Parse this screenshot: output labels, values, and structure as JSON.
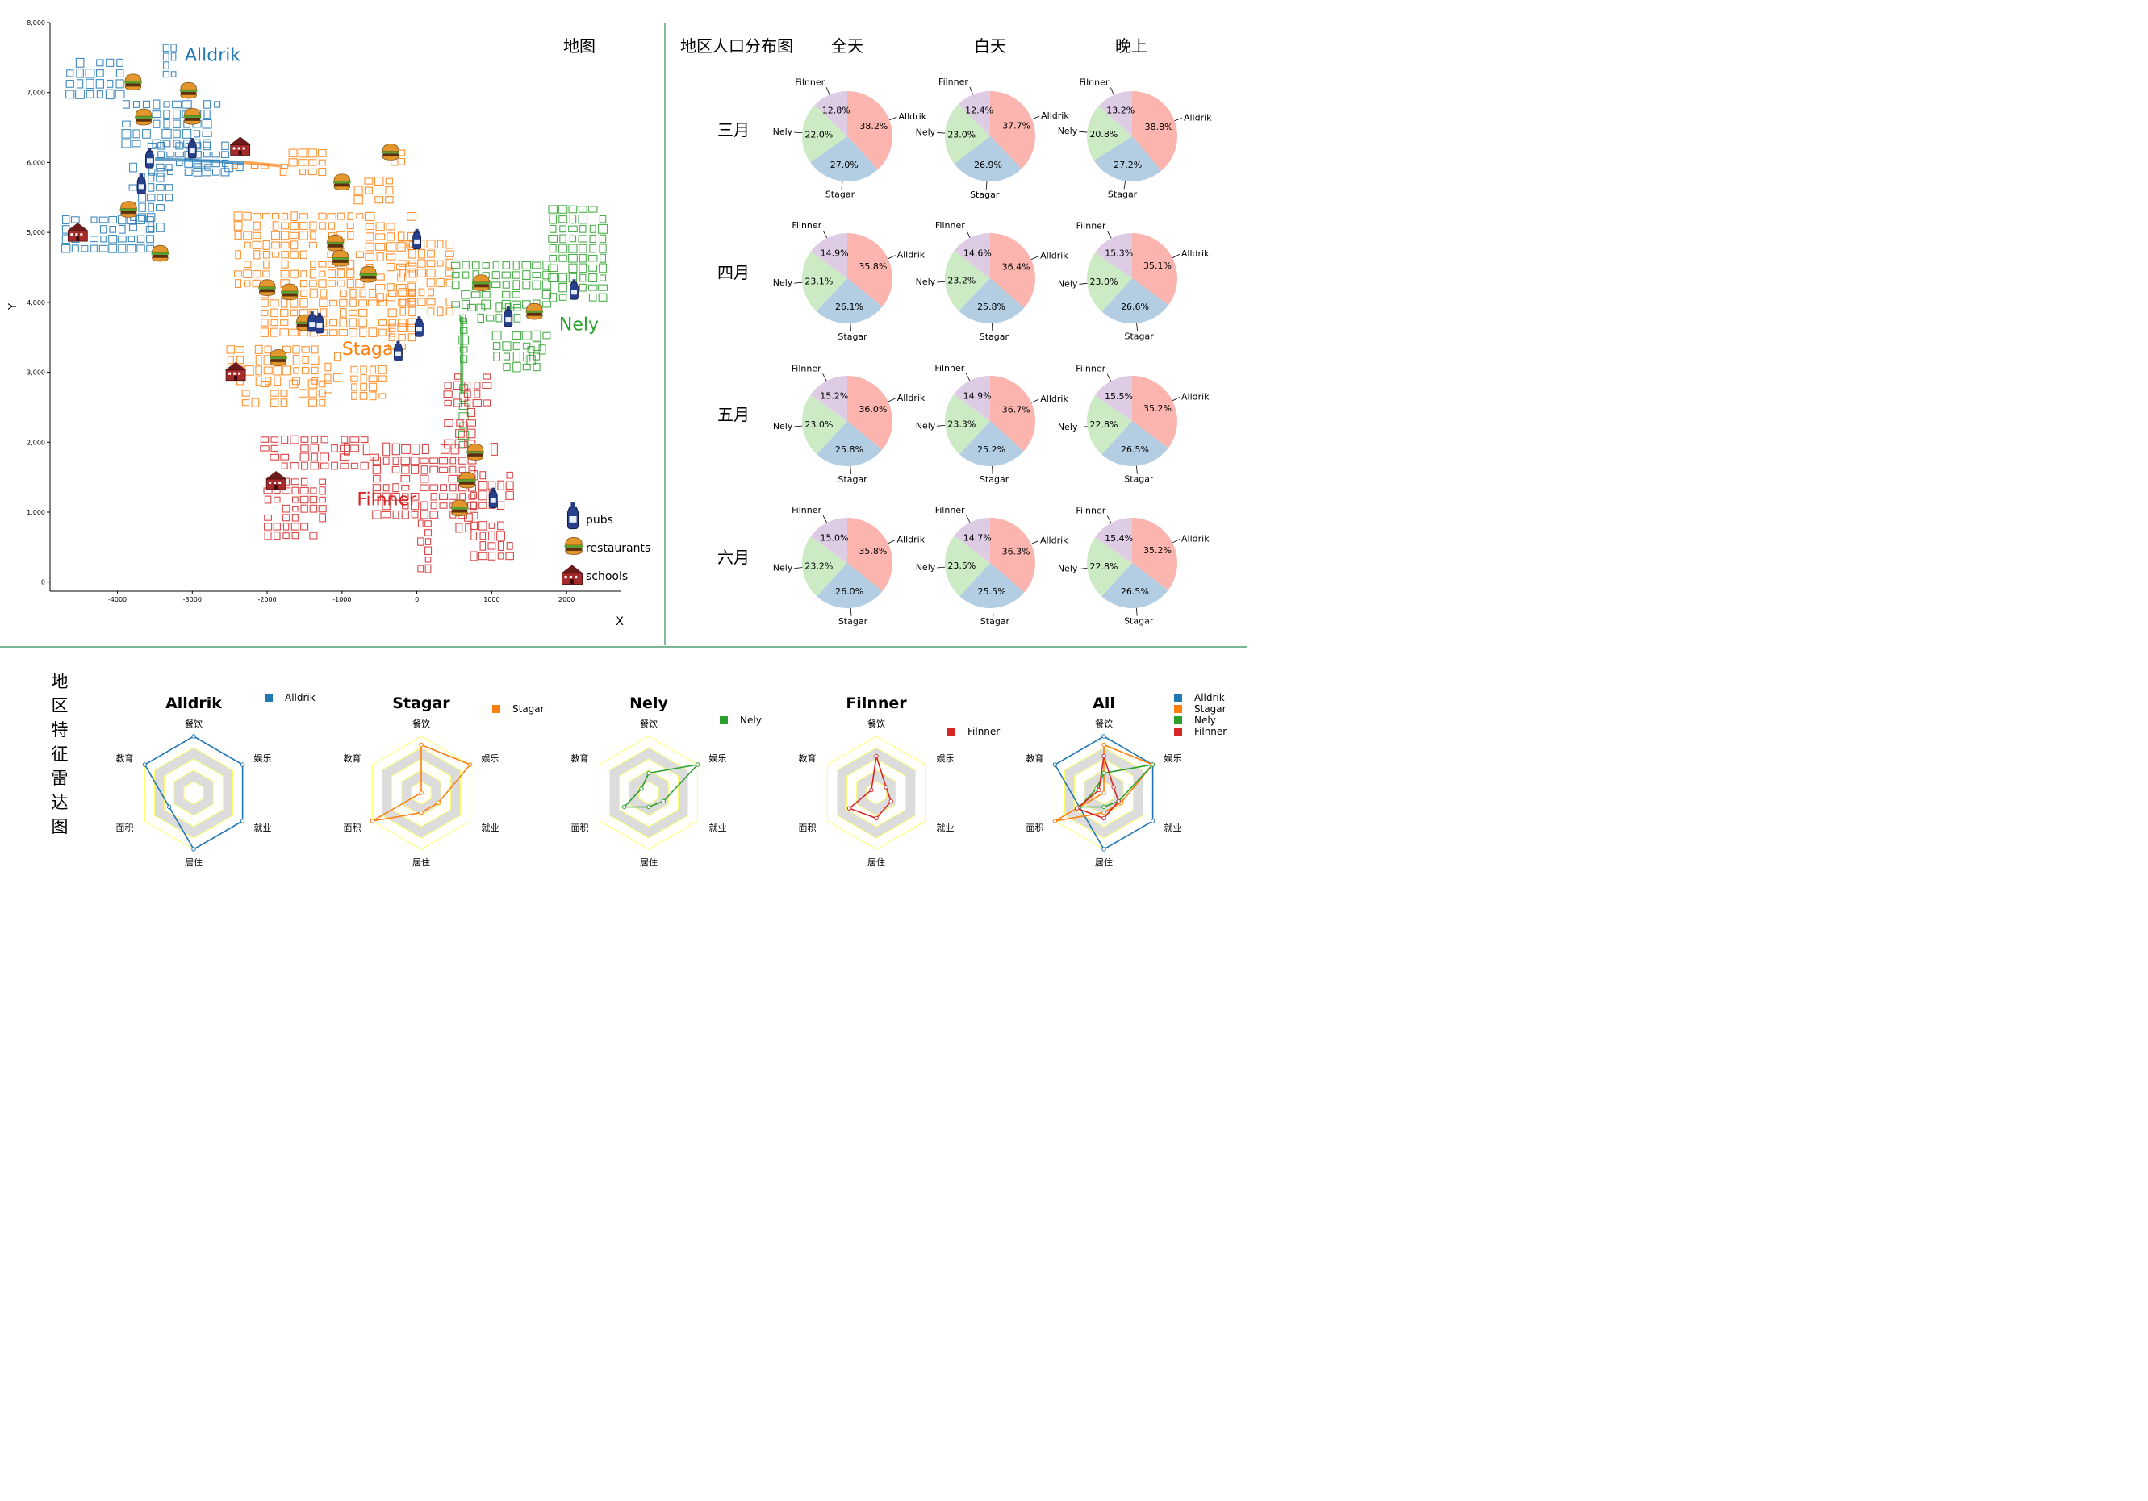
{
  "map": {
    "title": "地图",
    "xlabel": "X",
    "ylabel": "Y",
    "xticks": [
      -4000,
      -3000,
      -2000,
      -1000,
      0,
      1000,
      2000
    ],
    "yticks": [
      0,
      1000,
      2000,
      3000,
      4000,
      5000,
      6000,
      7000,
      8000
    ],
    "xlim": [
      -4900,
      2720
    ],
    "ylim": [
      -130,
      8000
    ],
    "regions": [
      {
        "name": "Alldrik",
        "color": "#1f77b4",
        "label_at": [
          -3100,
          7450
        ],
        "blocks": [
          [
            -4700,
            6900,
            -3900,
            7500
          ],
          [
            -3400,
            7200,
            -3200,
            7700
          ],
          [
            -3950,
            6200,
            -2600,
            6900
          ],
          [
            -3600,
            5800,
            -2500,
            6300
          ],
          [
            -3850,
            5000,
            -3250,
            6000
          ],
          [
            -4750,
            4700,
            -3500,
            5250
          ],
          [
            -3000,
            5860,
            -2300,
            6000
          ]
        ]
      },
      {
        "name": "Stagar",
        "color": "#ff7f0e",
        "label_at": [
          -1000,
          3250
        ],
        "blocks": [
          [
            -2500,
            5900,
            -1700,
            5990
          ],
          [
            -1850,
            5800,
            -1200,
            6200
          ],
          [
            -350,
            5950,
            -150,
            6200
          ],
          [
            -850,
            5400,
            -300,
            5800
          ],
          [
            -2450,
            4200,
            -700,
            5300
          ],
          [
            -700,
            4000,
            0,
            5300
          ],
          [
            -250,
            3800,
            500,
            4900
          ],
          [
            -2100,
            3500,
            0,
            4200
          ],
          [
            -2550,
            2800,
            -1300,
            3400
          ],
          [
            -2350,
            2500,
            -1200,
            2900
          ],
          [
            -1250,
            2700,
            -1000,
            3300
          ],
          [
            -900,
            2600,
            -400,
            3100
          ],
          [
            -400,
            3300,
            0,
            3700
          ]
        ]
      },
      {
        "name": "Nely",
        "color": "#2ca02c",
        "label_at": [
          1900,
          3600
        ],
        "blocks": [
          [
            1750,
            4000,
            2550,
            5400
          ],
          [
            450,
            3900,
            1800,
            4600
          ],
          [
            550,
            3700,
            1400,
            4000
          ],
          [
            1000,
            3000,
            1800,
            3600
          ],
          [
            550,
            1900,
            700,
            3800
          ],
          [
            1300,
            3100,
            1750,
            3400
          ]
        ]
      },
      {
        "name": "Filnner",
        "color": "#d62728",
        "label_at": [
          -800,
          1100
        ],
        "blocks": [
          [
            -2100,
            1600,
            -500,
            2100
          ],
          [
            -2050,
            600,
            -1200,
            1500
          ],
          [
            -1000,
            1800,
            1100,
            2000
          ],
          [
            -600,
            900,
            800,
            1800
          ],
          [
            350,
            2500,
            1000,
            3000
          ],
          [
            350,
            1900,
            800,
            2500
          ],
          [
            0,
            0,
            200,
            900
          ],
          [
            700,
            300,
            1300,
            1600
          ],
          [
            500,
            700,
            750,
            1000
          ]
        ]
      }
    ],
    "roads": [
      {
        "color": "#1f77b4",
        "points": [
          [
            -3500,
            6050
          ],
          [
            -2300,
            6000
          ]
        ]
      },
      {
        "color": "#ff7f0e",
        "points": [
          [
            -2300,
            6000
          ],
          [
            -1800,
            5950
          ]
        ]
      },
      {
        "color": "#2ca02c",
        "points": [
          [
            600,
            3800
          ],
          [
            600,
            2700
          ]
        ]
      }
    ],
    "pubs": [
      [
        -3570,
        6060
      ],
      [
        -3000,
        6200
      ],
      [
        -3680,
        5690
      ],
      [
        0,
        4900
      ],
      [
        2100,
        4180
      ],
      [
        1220,
        3790
      ],
      [
        -1400,
        3720
      ],
      [
        -1300,
        3700
      ],
      [
        30,
        3650
      ],
      [
        -250,
        3300
      ],
      [
        1020,
        1200
      ]
    ],
    "restaurants": [
      [
        -3790,
        7150
      ],
      [
        -3050,
        7030
      ],
      [
        -3650,
        6650
      ],
      [
        -3000,
        6660
      ],
      [
        -350,
        6150
      ],
      [
        -1000,
        5720
      ],
      [
        -3850,
        5330
      ],
      [
        -3430,
        4700
      ],
      [
        -1090,
        4850
      ],
      [
        -1020,
        4630
      ],
      [
        -650,
        4400
      ],
      [
        860,
        4280
      ],
      [
        -1700,
        4150
      ],
      [
        -2000,
        4210
      ],
      [
        1570,
        3870
      ],
      [
        -1500,
        3710
      ],
      [
        -1850,
        3210
      ],
      [
        780,
        1860
      ],
      [
        670,
        1460
      ],
      [
        570,
        1060
      ]
    ],
    "schools": [
      [
        -2360,
        6230
      ],
      [
        -4530,
        5000
      ],
      [
        -2420,
        3010
      ],
      [
        -1880,
        1450
      ]
    ],
    "legend": [
      {
        "icon": "pub-icon",
        "label": "pubs"
      },
      {
        "icon": "restaurant-icon",
        "label": "restaurants"
      },
      {
        "icon": "school-icon",
        "label": "schools"
      }
    ]
  },
  "pies": {
    "title": "地区人口分布图",
    "columns": [
      "全天",
      "白天",
      "晚上"
    ],
    "rows": [
      "三月",
      "四月",
      "五月",
      "六月"
    ],
    "labels": [
      "Alldrik",
      "Stagar",
      "Nely",
      "Filnner"
    ],
    "colors": {
      "Alldrik": "#fbb4ae",
      "Stagar": "#b3cde3",
      "Nely": "#ccebc5",
      "Filnner": "#decbe4"
    },
    "values": [
      [
        [
          38.2,
          27.0,
          22.0,
          12.8
        ],
        [
          37.7,
          26.9,
          23.0,
          12.4
        ],
        [
          38.8,
          27.2,
          20.8,
          13.2
        ]
      ],
      [
        [
          35.8,
          26.1,
          23.1,
          14.9
        ],
        [
          36.4,
          25.8,
          23.2,
          14.6
        ],
        [
          35.1,
          26.6,
          23.0,
          15.3
        ]
      ],
      [
        [
          36.0,
          25.8,
          23.0,
          15.2
        ],
        [
          36.7,
          25.2,
          23.3,
          14.9
        ],
        [
          35.2,
          26.5,
          22.8,
          15.5
        ]
      ],
      [
        [
          35.8,
          26.0,
          23.2,
          15.0
        ],
        [
          36.3,
          25.5,
          23.5,
          14.7
        ],
        [
          35.2,
          26.5,
          22.8,
          15.4
        ]
      ]
    ]
  },
  "radar": {
    "title": "地区特征雷达图",
    "axes": [
      "餐饮",
      "娱乐",
      "就业",
      "居住",
      "面积",
      "教育"
    ],
    "charts": [
      {
        "title": "Alldrik",
        "series": [
          {
            "name": "Alldrik",
            "color": "#1f77b4",
            "values": [
              1.0,
              1.0,
              1.0,
              1.0,
              0.5,
              1.0
            ]
          }
        ]
      },
      {
        "title": "Stagar",
        "series": [
          {
            "name": "Stagar",
            "color": "#ff7f0e",
            "values": [
              0.85,
              1.0,
              0.35,
              0.35,
              1.0,
              0.0
            ]
          }
        ]
      },
      {
        "title": "Nely",
        "series": [
          {
            "name": "Nely",
            "color": "#2ca02c",
            "values": [
              0.35,
              1.0,
              0.3,
              0.25,
              0.5,
              0.15
            ]
          }
        ]
      },
      {
        "title": "Filnner",
        "series": [
          {
            "name": "Filnner",
            "color": "#d62728",
            "values": [
              0.65,
              0.2,
              0.3,
              0.45,
              0.55,
              0.1
            ]
          }
        ]
      },
      {
        "title": "All",
        "series": [
          {
            "name": "Alldrik",
            "color": "#1f77b4",
            "values": [
              1.0,
              1.0,
              1.0,
              1.0,
              0.5,
              1.0
            ]
          },
          {
            "name": "Stagar",
            "color": "#ff7f0e",
            "values": [
              0.85,
              1.0,
              0.35,
              0.35,
              1.0,
              0.0
            ]
          },
          {
            "name": "Nely",
            "color": "#2ca02c",
            "values": [
              0.35,
              1.0,
              0.3,
              0.25,
              0.5,
              0.15
            ]
          },
          {
            "name": "Filnner",
            "color": "#d62728",
            "values": [
              0.65,
              0.2,
              0.3,
              0.45,
              0.55,
              0.1
            ]
          }
        ]
      }
    ]
  },
  "chart_data": [
    {
      "type": "scatter",
      "title": "地图",
      "xlabel": "X",
      "ylabel": "Y",
      "xlim": [
        -4900,
        2720
      ],
      "ylim": [
        -130,
        8000
      ],
      "series": [
        {
          "name": "pubs"
        },
        {
          "name": "restaurants"
        },
        {
          "name": "schools"
        }
      ]
    },
    {
      "type": "pie",
      "title": "地区人口分布图",
      "note": "values in map.pies.values (percent)"
    },
    {
      "type": "radar",
      "title": "地区特征雷达图"
    }
  ]
}
